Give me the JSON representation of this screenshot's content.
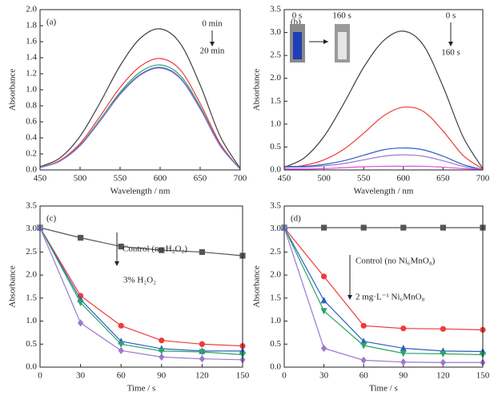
{
  "chart_data": [
    {
      "type": "line",
      "label": "(a)",
      "x_label": "Wavelength / nm",
      "y_label": "Absorbance",
      "x": [
        450,
        475,
        500,
        525,
        550,
        575,
        600,
        625,
        650,
        675,
        700
      ],
      "xlim": [
        450,
        700
      ],
      "xticks": [
        450,
        500,
        550,
        600,
        650,
        700
      ],
      "ylim": [
        0,
        2
      ],
      "yticks": [
        {
          "value": 0,
          "label": "0.0"
        },
        0.2,
        0.4,
        0.6,
        0.8,
        {
          "value": 1,
          "label": "1.0"
        },
        1.2,
        1.4,
        1.6,
        1.8,
        {
          "value": 2,
          "label": "2.0"
        }
      ],
      "annotations": [
        "0 min",
        "20 min"
      ],
      "series": [
        {
          "color": "#404040",
          "values": [
            0.04,
            0.15,
            0.42,
            0.84,
            1.3,
            1.64,
            1.76,
            1.58,
            1.06,
            0.42,
            0.02
          ]
        },
        {
          "color": "#f03a3a",
          "values": [
            0.03,
            0.12,
            0.33,
            0.67,
            1.03,
            1.29,
            1.39,
            1.25,
            0.83,
            0.33,
            0.01
          ]
        },
        {
          "color": "#2aa56a",
          "values": [
            0.03,
            0.11,
            0.31,
            0.63,
            0.97,
            1.22,
            1.31,
            1.18,
            0.79,
            0.31,
            0.01
          ]
        },
        {
          "color": "#2f5fc4",
          "values": [
            0.03,
            0.11,
            0.31,
            0.61,
            0.95,
            1.19,
            1.28,
            1.15,
            0.77,
            0.31,
            0.01
          ]
        },
        {
          "color": "#9b78d0",
          "values": [
            0.03,
            0.11,
            0.3,
            0.61,
            0.94,
            1.18,
            1.27,
            1.14,
            0.76,
            0.3,
            0.01
          ]
        }
      ]
    },
    {
      "type": "line",
      "label": "(b)",
      "x_label": "Wavelength / nm",
      "y_label": "Absorbance",
      "x": [
        450,
        475,
        500,
        525,
        550,
        575,
        600,
        625,
        650,
        675,
        700
      ],
      "xlim": [
        450,
        700
      ],
      "xticks": [
        450,
        500,
        550,
        600,
        650,
        700
      ],
      "ylim": [
        0,
        3.5
      ],
      "yticks": [
        {
          "value": 0,
          "label": "0.0"
        },
        0.5,
        {
          "value": 1,
          "label": "1.0"
        },
        1.5,
        {
          "value": 2,
          "label": "2.0"
        },
        2.5,
        {
          "value": 3,
          "label": "3.0"
        },
        3.5
      ],
      "annotations": [
        "0 s",
        "160 s",
        "0 s",
        "160 s"
      ],
      "series": [
        {
          "color": "#404040",
          "values": [
            0.06,
            0.26,
            0.73,
            1.45,
            2.24,
            2.82,
            3.03,
            2.73,
            1.82,
            0.73,
            0.03
          ]
        },
        {
          "color": "#f03a3a",
          "values": [
            0.05,
            0.1,
            0.22,
            0.45,
            0.8,
            1.18,
            1.37,
            1.28,
            0.85,
            0.32,
            0.02
          ]
        },
        {
          "color": "#2f5fc4",
          "values": [
            0.08,
            0.08,
            0.12,
            0.2,
            0.32,
            0.44,
            0.48,
            0.44,
            0.3,
            0.12,
            0.01
          ]
        },
        {
          "color": "#9b78d0",
          "values": [
            0.06,
            0.06,
            0.09,
            0.14,
            0.22,
            0.3,
            0.33,
            0.3,
            0.2,
            0.08,
            0.01
          ]
        },
        {
          "color": "#e050e0",
          "values": [
            0.02,
            0.02,
            0.03,
            0.05,
            0.07,
            0.08,
            0.08,
            0.08,
            0.06,
            0.03,
            0.01
          ]
        }
      ]
    },
    {
      "type": "line",
      "label": "(c)",
      "x_label": "Time / s",
      "y_label": "Absorbance",
      "x": [
        0,
        30,
        60,
        90,
        120,
        150
      ],
      "xlim": [
        0,
        150
      ],
      "xticks": [
        0,
        30,
        60,
        90,
        120,
        150
      ],
      "ylim": [
        0,
        3.5
      ],
      "yticks": [
        {
          "value": 0,
          "label": "0.0"
        },
        0.5,
        {
          "value": 1,
          "label": "1.0"
        },
        1.5,
        {
          "value": 2,
          "label": "2.0"
        },
        2.5,
        {
          "value": 3,
          "label": "3.0"
        },
        3.5
      ],
      "annotations": [
        "Control (no H₂O₂)",
        "3% H₂O₂"
      ],
      "series": [
        {
          "color": "#555555",
          "marker": "square",
          "values": [
            3.03,
            2.81,
            2.62,
            2.54,
            2.5,
            2.42
          ]
        },
        {
          "color": "#f03a3a",
          "marker": "circle",
          "values": [
            3.03,
            1.55,
            0.9,
            0.58,
            0.5,
            0.46
          ]
        },
        {
          "color": "#2f5fc4",
          "marker": "triangle",
          "values": [
            3.03,
            1.47,
            0.56,
            0.4,
            0.35,
            0.35
          ]
        },
        {
          "color": "#2aa56a",
          "marker": "triangle-down",
          "values": [
            3.03,
            1.4,
            0.5,
            0.35,
            0.33,
            0.27
          ]
        },
        {
          "color": "#9b78d0",
          "marker": "diamond",
          "values": [
            3.03,
            0.96,
            0.36,
            0.22,
            0.18,
            0.16
          ]
        }
      ]
    },
    {
      "type": "line",
      "label": "(d)",
      "x_label": "Time / s",
      "y_label": "Absorbance",
      "x": [
        0,
        30,
        60,
        90,
        120,
        150
      ],
      "xlim": [
        0,
        150
      ],
      "xticks": [
        0,
        30,
        60,
        90,
        120,
        150
      ],
      "ylim": [
        0,
        3.5
      ],
      "yticks": [
        {
          "value": 0,
          "label": "0.0"
        },
        0.5,
        {
          "value": 1,
          "label": "1.0"
        },
        1.5,
        {
          "value": 2,
          "label": "2.0"
        },
        2.5,
        {
          "value": 3,
          "label": "3.0"
        },
        3.5
      ],
      "annotations": [
        "Control (no Ni₆MnO₈)",
        "2 mg·L⁻¹ Ni₆MnO₈"
      ],
      "series": [
        {
          "color": "#555555",
          "marker": "square",
          "values": [
            3.03,
            3.03,
            3.03,
            3.03,
            3.03,
            3.03
          ]
        },
        {
          "color": "#f03a3a",
          "marker": "circle",
          "values": [
            3.03,
            1.97,
            0.9,
            0.84,
            0.83,
            0.81
          ]
        },
        {
          "color": "#2f5fc4",
          "marker": "triangle",
          "values": [
            3.03,
            1.45,
            0.56,
            0.41,
            0.35,
            0.34
          ]
        },
        {
          "color": "#2aa56a",
          "marker": "triangle-down",
          "values": [
            3.03,
            1.22,
            0.47,
            0.3,
            0.29,
            0.27
          ]
        },
        {
          "color": "#9b78d0",
          "marker": "diamond",
          "values": [
            3.03,
            0.41,
            0.15,
            0.11,
            0.1,
            0.1
          ]
        }
      ]
    }
  ]
}
